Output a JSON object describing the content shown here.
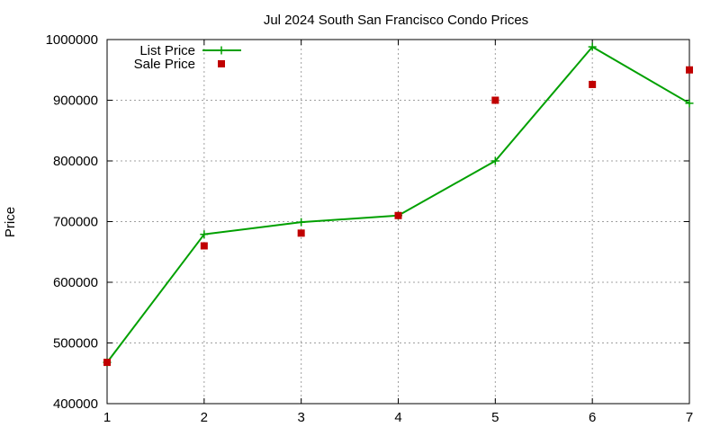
{
  "chart_data": {
    "type": "line",
    "title": "Jul 2024 South San Francisco Condo Prices",
    "xlabel": "",
    "ylabel": "Price",
    "x": [
      1,
      2,
      3,
      4,
      5,
      6,
      7
    ],
    "xlim": [
      1,
      7
    ],
    "ylim": [
      400000,
      1000000
    ],
    "xticks": [
      "1",
      "2",
      "3",
      "4",
      "5",
      "6",
      "7"
    ],
    "yticks": [
      "400000",
      "500000",
      "600000",
      "700000",
      "800000",
      "900000",
      "1000000"
    ],
    "grid": true,
    "legend_position": "top-left",
    "series": [
      {
        "name": "List Price",
        "style": "line+cross",
        "color": "#00a000",
        "values": [
          468000,
          679000,
          699000,
          710000,
          800000,
          988000,
          895000
        ]
      },
      {
        "name": "Sale Price",
        "style": "square",
        "color": "#c00000",
        "values": [
          468000,
          660000,
          681000,
          710000,
          900000,
          926000,
          950000
        ]
      }
    ]
  }
}
